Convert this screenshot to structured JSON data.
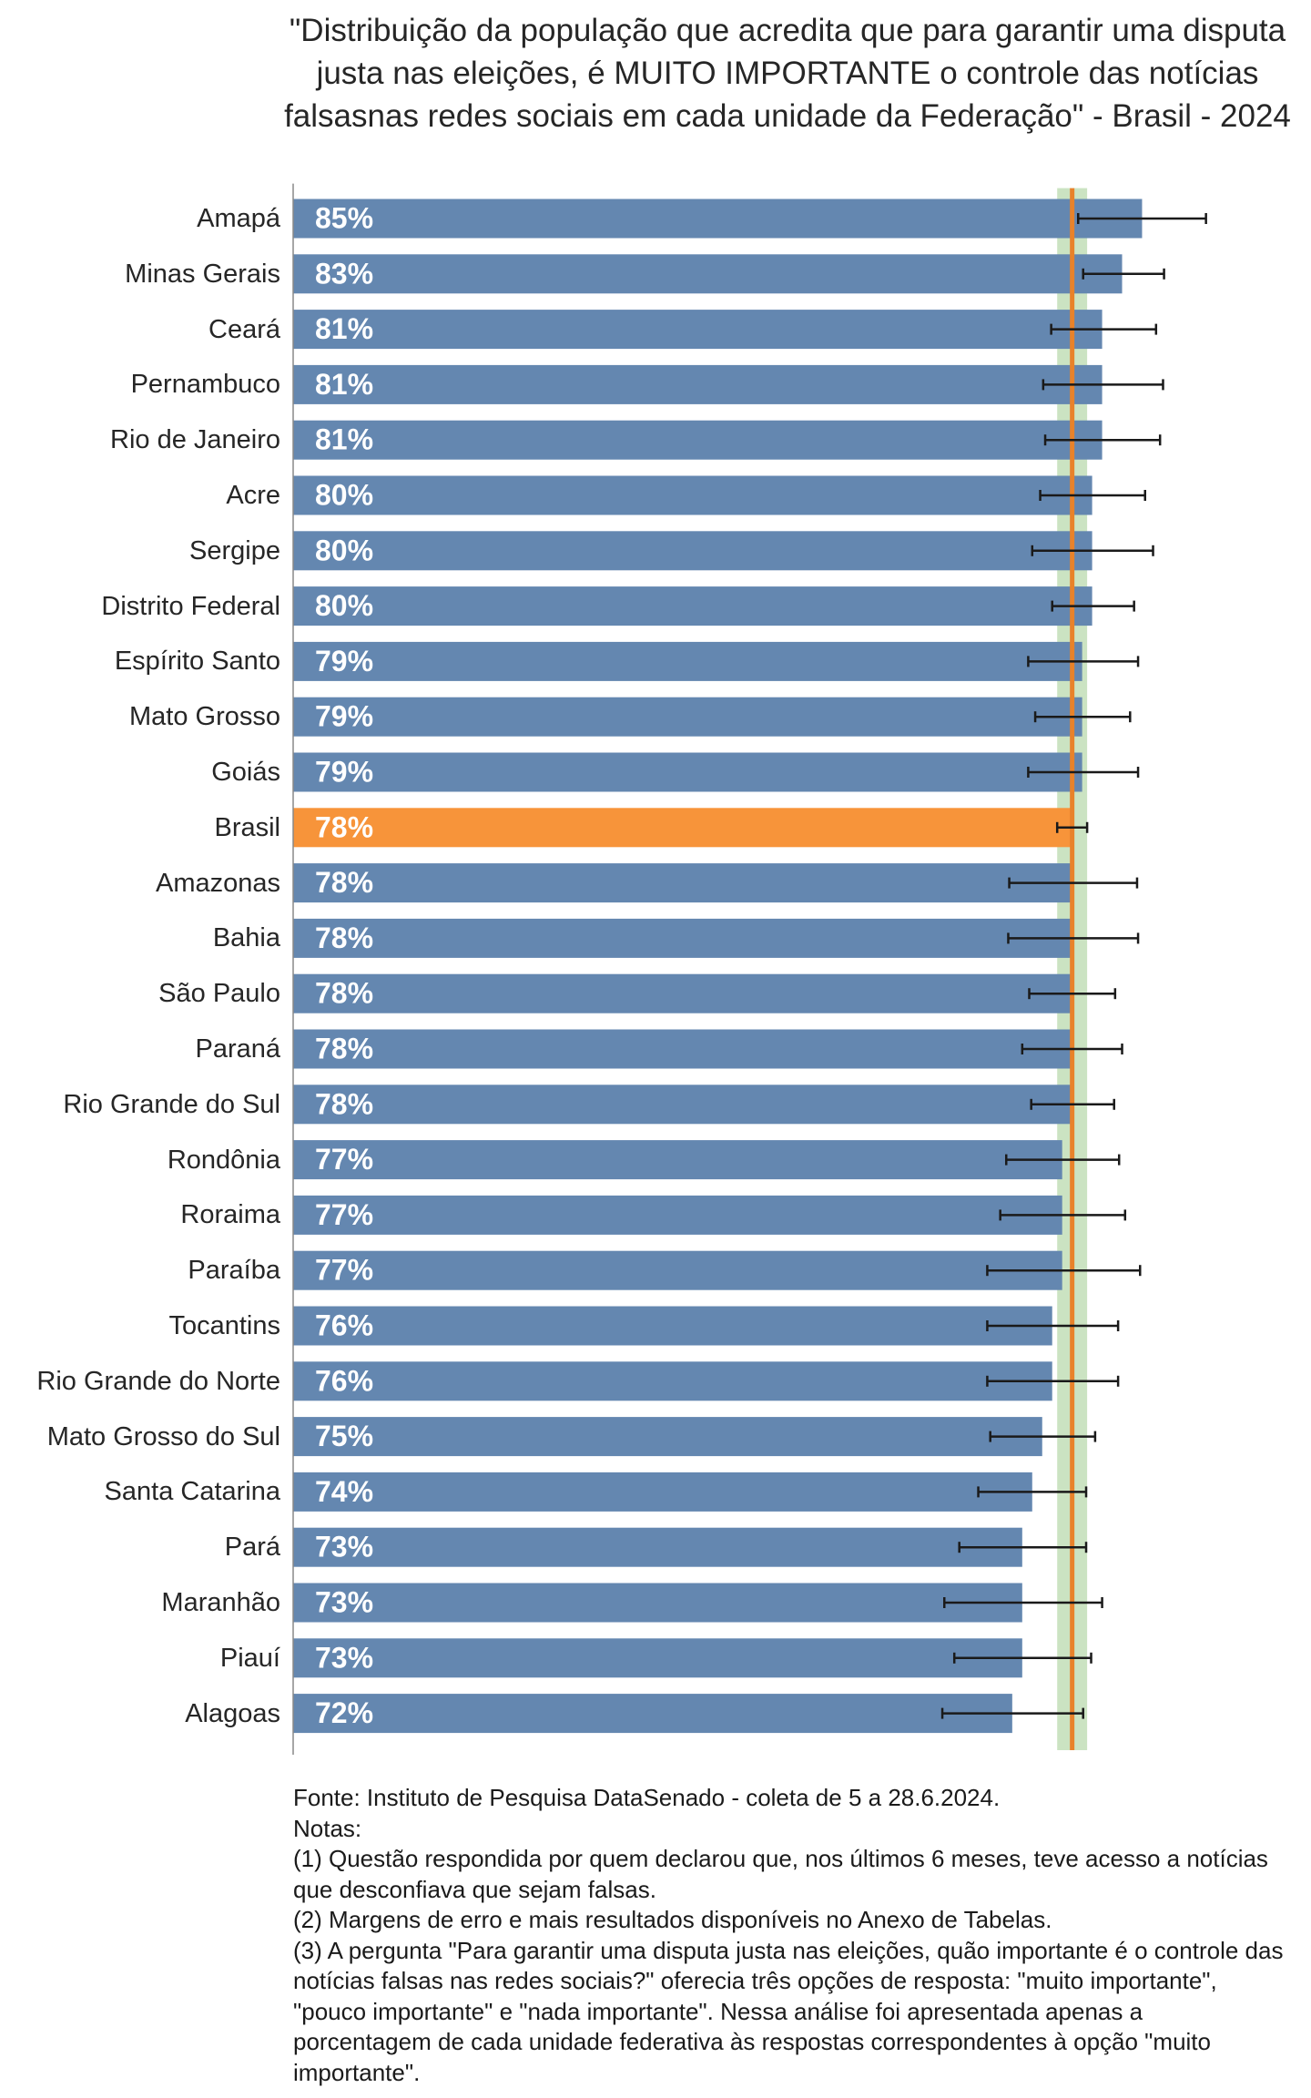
{
  "chart_data": {
    "type": "bar",
    "orientation": "horizontal",
    "title": "\"Distribuição da população que acredita que para garantir uma disputa justa nas eleições, é MUITO IMPORTANTE o controle das notícias falsasnas redes sociais em cada unidade da Federação\" - Brasil - 2024",
    "categories": [
      "Amapá",
      "Minas Gerais",
      "Ceará",
      "Pernambuco",
      "Rio de Janeiro",
      "Acre",
      "Sergipe",
      "Distrito Federal",
      "Espírito Santo",
      "Mato Grosso",
      "Goiás",
      "Brasil",
      "Amazonas",
      "Bahia",
      "São Paulo",
      "Paraná",
      "Rio Grande do Sul",
      "Rondônia",
      "Roraima",
      "Paraíba",
      "Tocantins",
      "Rio Grande do Norte",
      "Mato Grosso do Sul",
      "Santa Catarina",
      "Pará",
      "Maranhão",
      "Piauí",
      "Alagoas"
    ],
    "values": [
      85,
      83,
      81,
      81,
      81,
      80,
      80,
      80,
      79,
      79,
      79,
      78,
      78,
      78,
      78,
      78,
      78,
      77,
      77,
      77,
      76,
      76,
      75,
      74,
      73,
      73,
      73,
      72
    ],
    "value_labels": [
      "85%",
      "83%",
      "81%",
      "81%",
      "81%",
      "80%",
      "80%",
      "80%",
      "79%",
      "79%",
      "79%",
      "78%",
      "78%",
      "78%",
      "78%",
      "78%",
      "78%",
      "77%",
      "77%",
      "77%",
      "76%",
      "76%",
      "75%",
      "74%",
      "73%",
      "73%",
      "73%",
      "72%"
    ],
    "lower": [
      78.6,
      79.1,
      75.9,
      75.1,
      75.3,
      74.8,
      74.0,
      76.0,
      73.6,
      74.3,
      73.6,
      76.5,
      71.7,
      71.6,
      73.7,
      73.0,
      73.9,
      71.4,
      70.8,
      69.5,
      69.5,
      69.5,
      69.8,
      68.6,
      66.7,
      65.2,
      66.2,
      65.0
    ],
    "upper": [
      91.4,
      87.2,
      86.4,
      87.1,
      86.8,
      85.3,
      86.1,
      84.2,
      84.6,
      83.8,
      84.6,
      79.5,
      84.5,
      84.6,
      82.3,
      83.0,
      82.2,
      82.7,
      83.3,
      84.8,
      82.6,
      82.6,
      80.3,
      79.4,
      79.4,
      81.0,
      79.9,
      79.1
    ],
    "colors": [
      "#6487b0",
      "#6487b0",
      "#6487b0",
      "#6487b0",
      "#6487b0",
      "#6487b0",
      "#6487b0",
      "#6487b0",
      "#6487b0",
      "#6487b0",
      "#6487b0",
      "#f7943a",
      "#6487b0",
      "#6487b0",
      "#6487b0",
      "#6487b0",
      "#6487b0",
      "#6487b0",
      "#6487b0",
      "#6487b0",
      "#6487b0",
      "#6487b0",
      "#6487b0",
      "#6487b0",
      "#6487b0",
      "#6487b0",
      "#6487b0",
      "#6487b0"
    ],
    "reference_color": "#e8822a",
    "band_color": "#a9d19a",
    "xlim": [
      0,
      100
    ],
    "source": "Fonte: Instituto de Pesquisa DataSenado - coleta de 5 a 28.6.2024.",
    "notes_title": "Notas:",
    "notes": [
      "(1) Questão respondida por quem declarou que, nos últimos 6 meses, teve acesso a notícias que desconfiava que sejam falsas.",
      "(2) Margens de erro e mais resultados disponíveis no Anexo de Tabelas.",
      "(3) A pergunta \"Para garantir uma disputa justa nas eleições, quão importante é o controle das notícias falsas nas redes sociais?\" oferecia três opções de resposta: \"muito importante\", \"pouco importante\" e \"nada importante\". Nessa análise foi apresentada apenas a porcentagem de cada unidade federativa às respostas correspondentes à opção \"muito importante\"."
    ]
  }
}
